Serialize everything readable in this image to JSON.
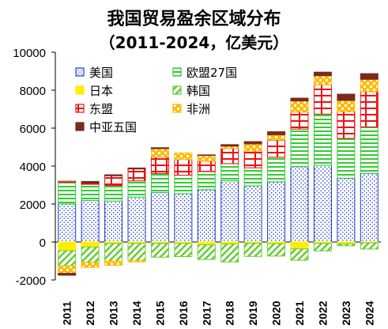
{
  "chart_data": {
    "type": "bar",
    "stacked": true,
    "title": "我国贸易盈余区域分布",
    "subtitle": "（2011-2024，亿美元）",
    "xlabel": "",
    "ylabel": "",
    "categories": [
      "2011",
      "2012",
      "2013",
      "2014",
      "2015",
      "2016",
      "2017",
      "2018",
      "2019",
      "2020",
      "2021",
      "2022",
      "2023",
      "2024"
    ],
    "ylim": [
      -2000,
      10000
    ],
    "yticks": [
      -2000,
      0,
      2000,
      4000,
      6000,
      8000,
      10000
    ],
    "legend_position": "top-left",
    "grid": false,
    "series": [
      {
        "name": "美国",
        "color": "#1f3fbf",
        "values": [
          2000,
          2190,
          2160,
          2370,
          2610,
          2540,
          2760,
          3230,
          2960,
          3170,
          3970,
          4040,
          3360,
          3610
        ]
      },
      {
        "name": "欧盟27国",
        "color": "#33cc33",
        "values": [
          1150,
          850,
          820,
          850,
          1000,
          980,
          950,
          900,
          950,
          1300,
          1980,
          2700,
          2100,
          2450
        ]
      },
      {
        "name": "日本",
        "color": "#ffee00",
        "values": [
          -460,
          -260,
          -80,
          -70,
          -70,
          -70,
          -150,
          -100,
          -60,
          -90,
          -360,
          -70,
          -100,
          -40
        ]
      },
      {
        "name": "韩国",
        "color": "#66cc33",
        "values": [
          -800,
          -810,
          -920,
          -900,
          -730,
          -700,
          -770,
          -950,
          -700,
          -650,
          -600,
          -400,
          -100,
          -330
        ]
      },
      {
        "name": "东盟",
        "color": "#ee1111",
        "values": [
          50,
          60,
          510,
          630,
          870,
          830,
          550,
          800,
          880,
          900,
          900,
          1540,
          1400,
          1860
        ]
      },
      {
        "name": "非洲",
        "color": "#ffbb00",
        "values": [
          -390,
          -270,
          -230,
          -80,
          440,
          340,
          300,
          120,
          380,
          280,
          580,
          480,
          600,
          650
        ]
      },
      {
        "name": "中亚五国",
        "color": "#7a2a1e",
        "values": [
          -100,
          90,
          50,
          50,
          50,
          0,
          30,
          80,
          120,
          160,
          150,
          190,
          330,
          300
        ]
      }
    ]
  }
}
